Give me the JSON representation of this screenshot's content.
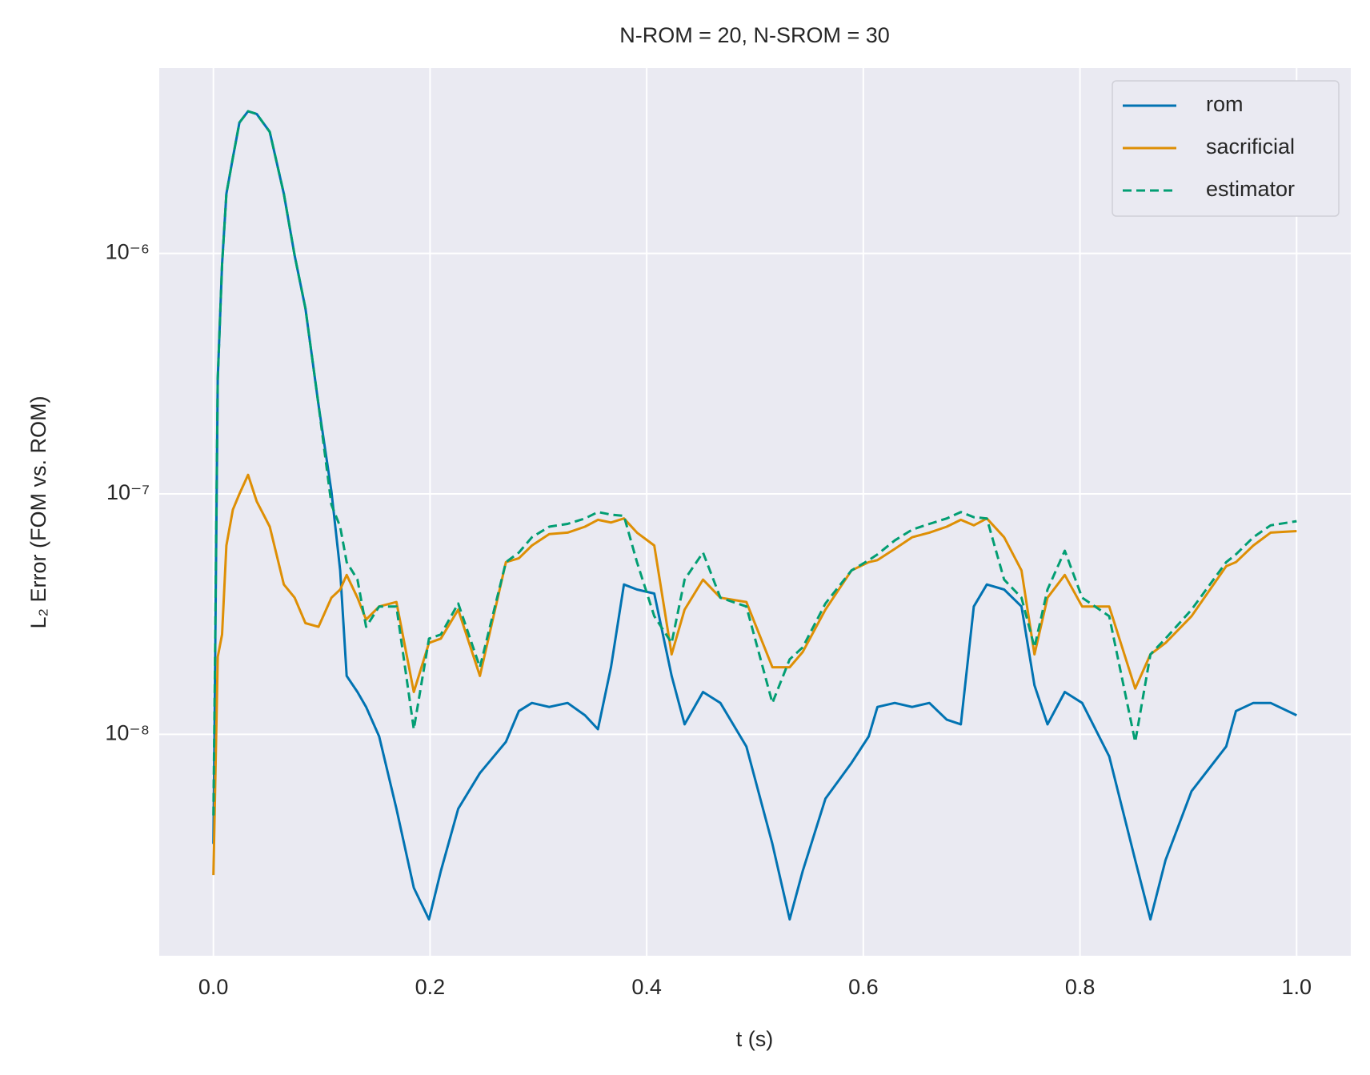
{
  "chart_data": {
    "type": "line",
    "title": "N-ROM = 20, N-SROM = 30",
    "xlabel": "t (s)",
    "ylabel": "L₂ Error (FOM vs. ROM)",
    "yscale": "log",
    "grid": true,
    "legend": "upper right",
    "xlim": [
      -0.05,
      1.05
    ],
    "ylim": [
      1.2e-09,
      5.9e-06
    ],
    "xticks": [
      {
        "value": 0,
        "label": "0.0"
      },
      0.2,
      0.4,
      0.6,
      0.8,
      {
        "value": 1,
        "label": "1.0"
      }
    ],
    "yticks": [
      {
        "value": 1e-08,
        "label": "10⁻⁸"
      },
      {
        "value": 1e-07,
        "label": "10⁻⁷"
      },
      {
        "value": 1e-06,
        "label": "10⁻⁶"
      }
    ],
    "x": [
      0,
      0.004,
      0.008,
      0.012,
      0.018,
      0.024,
      0.032,
      0.04,
      0.052,
      0.065,
      0.075,
      0.085,
      0.097,
      0.109,
      0.117,
      0.123,
      0.133,
      0.141,
      0.153,
      0.169,
      0.185,
      0.199,
      0.21,
      0.226,
      0.246,
      0.27,
      0.282,
      0.294,
      0.31,
      0.327,
      0.343,
      0.355,
      0.367,
      0.379,
      0.391,
      0.407,
      0.423,
      0.435,
      0.452,
      0.468,
      0.492,
      0.516,
      0.532,
      0.544,
      0.565,
      0.589,
      0.605,
      0.613,
      0.629,
      0.645,
      0.661,
      0.677,
      0.69,
      0.702,
      0.714,
      0.73,
      0.746,
      0.758,
      0.77,
      0.786,
      0.802,
      0.827,
      0.851,
      0.865,
      0.879,
      0.903,
      0.935,
      0.944,
      0.96,
      0.976,
      1.0
    ],
    "series": [
      {
        "name": "rom",
        "color": "#0173b2",
        "dash": false,
        "values": [
          3.5e-09,
          3e-07,
          9e-07,
          1.77e-06,
          2.5e-06,
          3.5e-06,
          3.9e-06,
          3.8e-06,
          3.2e-06,
          1.77e-06,
          9.8e-07,
          5.9e-07,
          2.35e-07,
          1.02e-07,
          4.8e-08,
          1.75e-08,
          1.5e-08,
          1.3e-08,
          9.8e-09,
          4.9e-09,
          2.3e-09,
          1.7e-09,
          2.7e-09,
          4.9e-09,
          6.9e-09,
          9.3e-09,
          1.25e-08,
          1.35e-08,
          1.3e-08,
          1.35e-08,
          1.2e-08,
          1.05e-08,
          1.9e-08,
          4.2e-08,
          4e-08,
          3.85e-08,
          1.75e-08,
          1.1e-08,
          1.5e-08,
          1.35e-08,
          8.9e-09,
          3.5e-09,
          1.7e-09,
          2.7e-09,
          5.4e-09,
          7.6e-09,
          9.8e-09,
          1.3e-08,
          1.35e-08,
          1.3e-08,
          1.35e-08,
          1.15e-08,
          1.1e-08,
          3.4e-08,
          4.2e-08,
          4e-08,
          3.4e-08,
          1.6e-08,
          1.1e-08,
          1.5e-08,
          1.35e-08,
          8.1e-09,
          3e-09,
          1.7e-09,
          3e-09,
          5.8e-09,
          8.9e-09,
          1.25e-08,
          1.35e-08,
          1.35e-08,
          1.2e-08
        ]
      },
      {
        "name": "sacrificial",
        "color": "#de8f05",
        "dash": false,
        "values": [
          2.6e-09,
          2.1e-08,
          2.6e-08,
          6.1e-08,
          8.6e-08,
          1e-07,
          1.2e-07,
          9.3e-08,
          7.3e-08,
          4.2e-08,
          3.7e-08,
          2.9e-08,
          2.8e-08,
          3.7e-08,
          4e-08,
          4.6e-08,
          3.7e-08,
          3e-08,
          3.4e-08,
          3.55e-08,
          1.5e-08,
          2.4e-08,
          2.5e-08,
          3.3e-08,
          1.75e-08,
          5.2e-08,
          5.4e-08,
          6.1e-08,
          6.8e-08,
          6.9e-08,
          7.3e-08,
          7.8e-08,
          7.6e-08,
          7.9e-08,
          6.9e-08,
          6.1e-08,
          2.15e-08,
          3.3e-08,
          4.4e-08,
          3.7e-08,
          3.55e-08,
          1.9e-08,
          1.9e-08,
          2.2e-08,
          3.3e-08,
          4.8e-08,
          5.2e-08,
          5.3e-08,
          5.9e-08,
          6.6e-08,
          6.9e-08,
          7.3e-08,
          7.8e-08,
          7.4e-08,
          7.9e-08,
          6.6e-08,
          4.8e-08,
          2.15e-08,
          3.7e-08,
          4.6e-08,
          3.4e-08,
          3.4e-08,
          1.55e-08,
          2.15e-08,
          2.4e-08,
          3.1e-08,
          5e-08,
          5.2e-08,
          6.1e-08,
          6.9e-08,
          7e-08
        ]
      },
      {
        "name": "estimator",
        "color": "#029e73",
        "dash": true,
        "values": [
          4.6e-09,
          3e-07,
          9e-07,
          1.77e-06,
          2.5e-06,
          3.5e-06,
          3.9e-06,
          3.8e-06,
          3.2e-06,
          1.77e-06,
          9.8e-07,
          5.9e-07,
          2.35e-07,
          9e-08,
          7.3e-08,
          5.2e-08,
          4.4e-08,
          2.8e-08,
          3.4e-08,
          3.4e-08,
          1.05e-08,
          2.5e-08,
          2.6e-08,
          3.5e-08,
          1.9e-08,
          5.2e-08,
          5.7e-08,
          6.6e-08,
          7.3e-08,
          7.5e-08,
          7.9e-08,
          8.4e-08,
          8.2e-08,
          8.1e-08,
          5.2e-08,
          3.1e-08,
          2.4e-08,
          4.4e-08,
          5.7e-08,
          3.7e-08,
          3.4e-08,
          1.35e-08,
          2.05e-08,
          2.3e-08,
          3.5e-08,
          4.8e-08,
          5.3e-08,
          5.6e-08,
          6.4e-08,
          7.1e-08,
          7.5e-08,
          7.9e-08,
          8.4e-08,
          8e-08,
          7.9e-08,
          4.4e-08,
          3.7e-08,
          2.3e-08,
          4e-08,
          5.8e-08,
          3.7e-08,
          3.1e-08,
          9.3e-09,
          2.15e-08,
          2.5e-08,
          3.3e-08,
          5.2e-08,
          5.6e-08,
          6.6e-08,
          7.4e-08,
          7.7e-08
        ]
      }
    ]
  }
}
